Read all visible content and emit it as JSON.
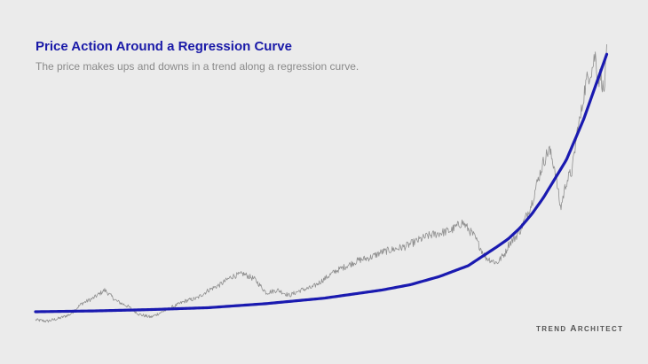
{
  "header": {
    "title": "Price Action Around a Regression Curve",
    "subtitle": "The price makes ups and downs in a trend along a regression curve."
  },
  "brand": {
    "first": "TREND",
    "cap": "A",
    "rest": "RCHITECT"
  },
  "colors": {
    "background": "#ebebeb",
    "title": "#1a1aa8",
    "curve": "#1a1ab0",
    "price": "#8f8f8f"
  },
  "chart_data": {
    "type": "line",
    "title": "Price Action Around a Regression Curve",
    "xlabel": "",
    "ylabel": "",
    "grid": false,
    "legend": "none",
    "xlim": [
      0,
      100
    ],
    "ylim": [
      0,
      100
    ],
    "series": [
      {
        "kind": "price",
        "x": [
          0,
          2,
          4,
          6,
          8,
          10,
          12,
          14,
          16,
          18,
          20,
          22,
          24,
          26,
          28,
          30,
          32,
          34,
          36,
          38,
          40,
          42,
          44,
          46,
          48,
          50,
          52,
          54,
          56,
          58,
          60,
          62,
          64,
          66,
          68,
          70,
          72,
          74,
          76,
          78,
          80,
          81.5,
          82,
          83,
          84,
          85,
          86,
          87,
          88,
          89,
          90,
          91,
          92,
          93,
          94,
          94.5,
          95,
          95.5,
          96,
          96.5,
          97,
          97.5,
          98,
          98.5,
          99
        ],
        "y": [
          -3,
          -3.5,
          -2.5,
          -1,
          3,
          5,
          8,
          4,
          2,
          -1,
          -2,
          0,
          2,
          4,
          5,
          8,
          10,
          13,
          14,
          12,
          7,
          8,
          6,
          8,
          9,
          12,
          15,
          17,
          19,
          20,
          22,
          23,
          24,
          26,
          28,
          29,
          30,
          33,
          28,
          20,
          18,
          22,
          25,
          27,
          30,
          35,
          40,
          48,
          55,
          60,
          53,
          38,
          48,
          52,
          68,
          72,
          80,
          85,
          88,
          90,
          95,
          85,
          88,
          80,
          95
        ]
      },
      {
        "kind": "regression",
        "x": [
          0,
          10,
          20,
          30,
          40,
          50,
          60,
          65,
          70,
          75,
          80,
          82,
          84,
          86,
          88,
          90,
          92,
          94,
          95,
          96,
          97,
          98,
          99
        ],
        "y": [
          0,
          0.3,
          0.8,
          1.5,
          3,
          5,
          8,
          10,
          13,
          17,
          24,
          27,
          31,
          36,
          42,
          49,
          56,
          66,
          71,
          77,
          83,
          89,
          95
        ]
      }
    ]
  }
}
